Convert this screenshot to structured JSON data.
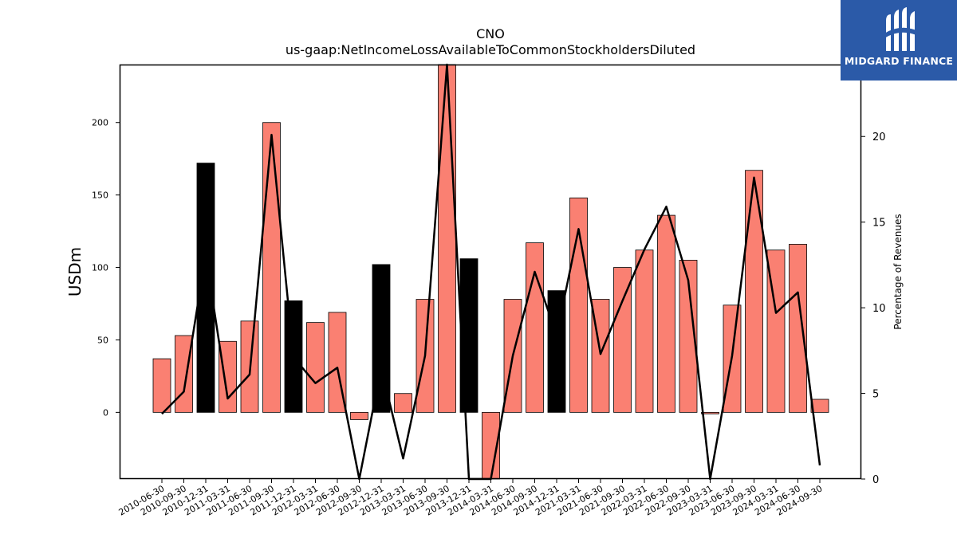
{
  "logo": {
    "text": "MIDGARD FINANCE",
    "bg_color": "#2b5aa8",
    "icon": "midgard-logo-icon"
  },
  "chart_data": {
    "type": "bar",
    "title": "CNO",
    "subtitle": "us-gaap:NetIncomeLossAvailableToCommonStockholdersDiluted",
    "ylabel": "USDm",
    "y2label": "Percentage of Revenues",
    "ylim": [
      -46,
      240
    ],
    "y2lim": [
      0,
      24.2
    ],
    "yticks": [
      0,
      50,
      100,
      150,
      200
    ],
    "y2ticks": [
      0,
      5,
      10,
      15,
      20
    ],
    "categories": [
      "2010-06-30",
      "2010-09-30",
      "2010-12-31",
      "2011-03-31",
      "2011-06-30",
      "2011-09-30",
      "2011-12-31",
      "2012-03-31",
      "2012-06-30",
      "2012-09-30",
      "2012-12-31",
      "2013-03-31",
      "2013-06-30",
      "2013-09-30",
      "2013-12-31",
      "2014-03-31",
      "2014-06-30",
      "2014-09-30",
      "2014-12-31",
      "2021-03-31",
      "2021-06-30",
      "2021-09-30",
      "2022-03-31",
      "2022-06-30",
      "2022-09-30",
      "2023-03-31",
      "2023-06-30",
      "2023-09-30",
      "2024-03-31",
      "2024-06-30",
      "2024-09-30"
    ],
    "series": [
      {
        "type": "bar",
        "values": [
          37,
          53,
          172,
          49,
          63,
          200,
          77,
          62,
          69,
          -5,
          102,
          13,
          78,
          240,
          106,
          -46,
          78,
          117,
          84,
          148,
          78,
          100,
          112,
          136,
          105,
          -1,
          74,
          167,
          112,
          116,
          9
        ]
      },
      {
        "type": "line",
        "axis": "right",
        "color": "#000000",
        "values": [
          3.8,
          5.1,
          13.1,
          4.7,
          6.1,
          20.1,
          7.1,
          5.6,
          6.5,
          0,
          6.5,
          1.2,
          7.2,
          24.2,
          0,
          0,
          7.2,
          12.1,
          8.4,
          14.6,
          7.3,
          10.4,
          13.4,
          15.9,
          11.6,
          0,
          7.2,
          17.6,
          9.7,
          10.9,
          0.8
        ]
      }
    ],
    "bar_colors": {
      "default": "#fa8072",
      "highlight": "#000000"
    },
    "highlight_indices": [
      2,
      6,
      10,
      14,
      18
    ],
    "grid": false
  }
}
